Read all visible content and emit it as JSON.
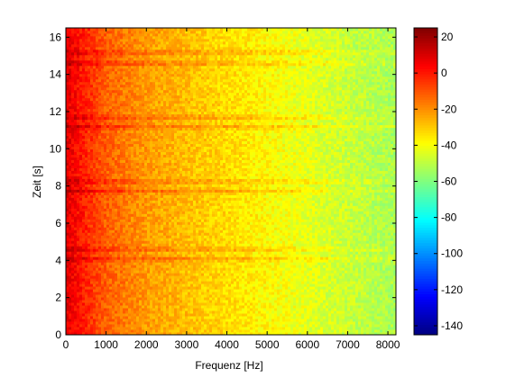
{
  "chart_data": {
    "type": "heatmap",
    "title": "",
    "xlabel": "Frequenz [Hz]",
    "ylabel": "Zeit [s]",
    "xlim": [
      0,
      8200
    ],
    "ylim": [
      0,
      16.5
    ],
    "x_ticks": [
      0,
      1000,
      2000,
      3000,
      4000,
      5000,
      6000,
      7000,
      8000
    ],
    "y_ticks": [
      0,
      2,
      4,
      6,
      8,
      10,
      12,
      14,
      16
    ],
    "x_tick_labels": [
      "0",
      "1000",
      "2000",
      "3000",
      "4000",
      "5000",
      "6000",
      "7000",
      "8000"
    ],
    "y_tick_labels": [
      "0",
      "2",
      "4",
      "6",
      "8",
      "10",
      "12",
      "14",
      "16"
    ],
    "grid": false,
    "colormap": "jet",
    "colorbar": {
      "clim": [
        -145,
        25
      ],
      "ticks": [
        20,
        0,
        -20,
        -40,
        -60,
        -80,
        -100,
        -120,
        -140
      ],
      "tick_labels": [
        "20",
        "0",
        "-20",
        "-40",
        "-60",
        "-80",
        "-100",
        "-120",
        "-140"
      ]
    },
    "level_profile_vs_frequency": {
      "frequency_hz": [
        0,
        200,
        500,
        1000,
        2000,
        3000,
        4000,
        5000,
        6000,
        7000,
        8200
      ],
      "level_db": [
        8,
        4,
        -2,
        -12,
        -22,
        -28,
        -33,
        -38,
        -43,
        -48,
        -53
      ]
    },
    "strong_bands_time_s": [
      4.1,
      4.6,
      7.75,
      8.25,
      11.2,
      11.7,
      14.6,
      15.2
    ]
  }
}
